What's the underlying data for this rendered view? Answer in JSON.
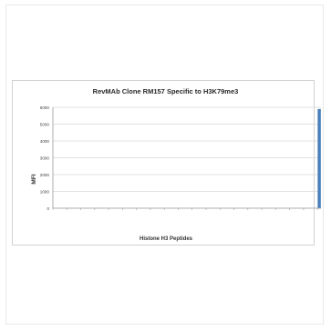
{
  "chart_data": {
    "type": "bar",
    "title": "RevMAb Clone RM157 Specific to H3K79me3",
    "xlabel": "Histone H3 Peptides",
    "ylabel": "MFI",
    "ylim": [
      0,
      6000
    ],
    "yticks": [
      "0",
      "1000",
      "2000",
      "3000",
      "4000",
      "5000",
      "6000"
    ],
    "grid": true,
    "legend": "none",
    "bar_color": "#4a7ebb",
    "categories": [
      "",
      "",
      "",
      "",
      "",
      "",
      "",
      "",
      "",
      "",
      "",
      "",
      "",
      "",
      "",
      "",
      "",
      "",
      "",
      "",
      "",
      "",
      "",
      "",
      "",
      "",
      "",
      "",
      "",
      "",
      "",
      "",
      "",
      "",
      "",
      "",
      "",
      "",
      "",
      "",
      "",
      "",
      "",
      "",
      "",
      "",
      "",
      "",
      "",
      "",
      "",
      "",
      "",
      "",
      "",
      "",
      "",
      "",
      "",
      "",
      "",
      "",
      "",
      "",
      "",
      "",
      "",
      "",
      "",
      "",
      "",
      "",
      "",
      "",
      "",
      "",
      ""
    ],
    "values": [
      10,
      12,
      8,
      15,
      10,
      9,
      11,
      13,
      10,
      8,
      12,
      10,
      9,
      14,
      11,
      10,
      12,
      8,
      10,
      11,
      9,
      13,
      10,
      12,
      8,
      10,
      11,
      9,
      10,
      12,
      10,
      8,
      11,
      10,
      9,
      12,
      10,
      11,
      8,
      10,
      12,
      9,
      10,
      11,
      10,
      8,
      12,
      10,
      9,
      11,
      10,
      12,
      8,
      10,
      11,
      9,
      10,
      12,
      10,
      8,
      11,
      10,
      9,
      12,
      10,
      11,
      8,
      10,
      12,
      9,
      10,
      11,
      10,
      8,
      12,
      10,
      5900
    ]
  }
}
